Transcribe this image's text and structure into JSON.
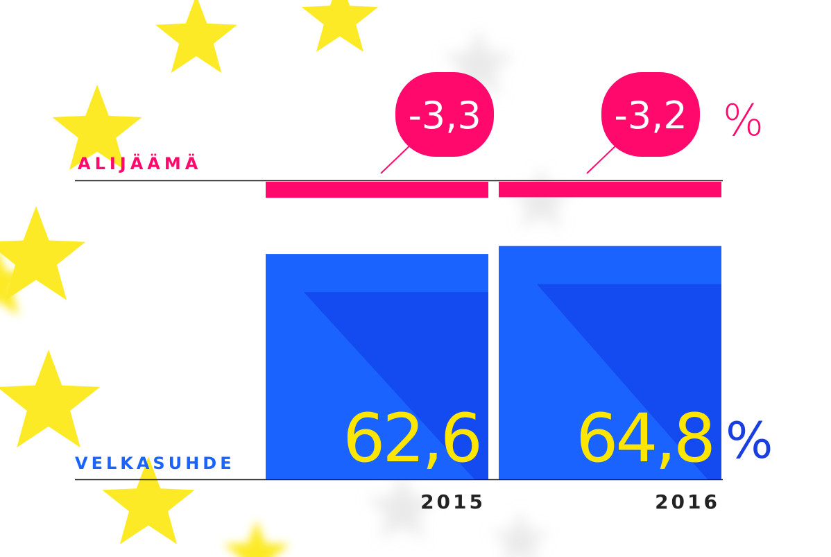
{
  "chart_data": {
    "type": "bar",
    "categories": [
      "2015",
      "2016"
    ],
    "series": [
      {
        "name": "ALIJÄÄMÄ",
        "values": [
          -3.3,
          -3.2
        ],
        "labels": [
          "-3,3",
          "-3,2"
        ],
        "unit": "%",
        "color": "#ff0a6c"
      },
      {
        "name": "VELKASUHDE",
        "values": [
          62.6,
          64.8
        ],
        "labels": [
          "62,6",
          "64,8"
        ],
        "unit": "%",
        "color": "#1a63ff"
      }
    ]
  },
  "colors": {
    "deficit": "#ff0a6c",
    "debt_bar": "#1a63ff",
    "debt_bar_shade": "#1448f0",
    "debt_value_text": "#ffe600",
    "debt_unit": "#1a3fe0",
    "star": "#fcea27",
    "ghost_star": "#d9d9d9",
    "axis": "#1a1a1a",
    "year_text": "#222222",
    "bubble_text": "#ffffff"
  }
}
